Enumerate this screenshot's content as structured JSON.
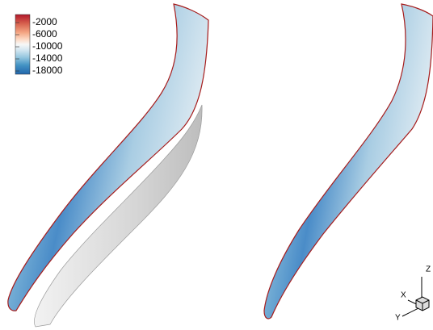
{
  "colorbar": {
    "ticks": [
      -2000,
      -6000,
      -10000,
      -14000,
      -18000
    ]
  },
  "axes": {
    "x": "X",
    "y": "Y",
    "z": "Z"
  }
}
